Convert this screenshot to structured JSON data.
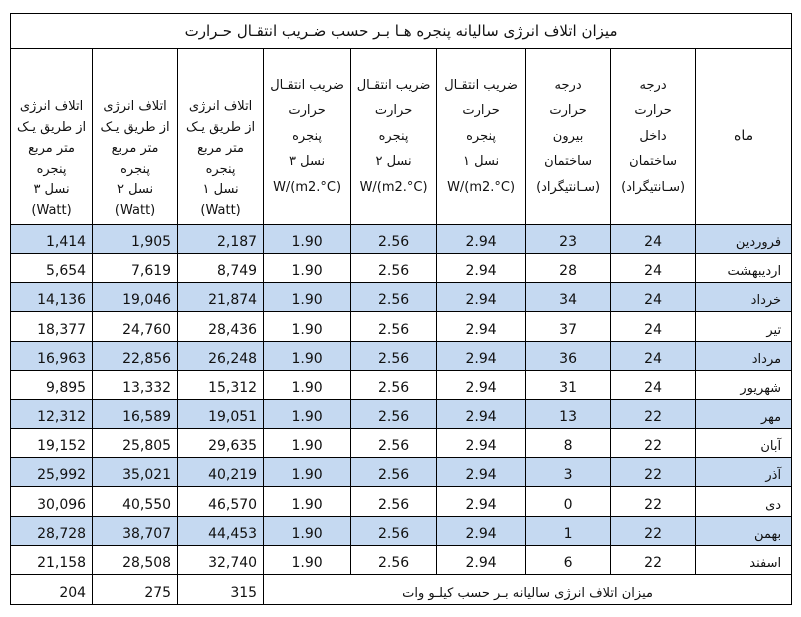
{
  "title": "میزان اتلاف انرژی سالیانه پنجره هـا بـر حسب ضـریب انتقـال حـرارت",
  "headers": {
    "month": "ماه",
    "temp_inside": [
      "درجه",
      "حرارت",
      "داخل",
      "ساختمان",
      "(سـانتیگراد)"
    ],
    "temp_outside": [
      "درجه",
      "حرارت",
      "بیرون",
      "ساختمان",
      "(سـانتیگراد)"
    ],
    "u_gen1": [
      "ضریب انتقـال",
      "حرارت",
      "پنجره",
      "نسل ۱",
      "W/(m2.°C)"
    ],
    "u_gen2": [
      "ضریب انتقـال",
      "حرارت",
      "پنجره",
      "نسل ۲",
      "W/(m2.°C)"
    ],
    "u_gen3": [
      "ضریب انتقـال",
      "حرارت",
      "پنجره",
      "نسل ۳",
      "W/(m2.°C)"
    ],
    "loss_gen1": [
      "اتلاف انرژی",
      "از طریق یـک",
      "متر مربع",
      "پنجره",
      "نسل ۱",
      "(Watt)"
    ],
    "loss_gen2": [
      "اتلاف انرژی",
      "از طریق یـک",
      "متر مربع",
      "پنجره",
      "نسل ۲",
      "(Watt)"
    ],
    "loss_gen3": [
      "اتلاف انرژی",
      "از طریق یـک",
      "متر مربع",
      "پنجره",
      "نسل ۳",
      "(Watt)"
    ]
  },
  "rows": [
    {
      "month": "فروردین",
      "t_in": "24",
      "t_out": "23",
      "u1": "2.94",
      "u2": "2.56",
      "u3": "1.90",
      "loss1": "2,187",
      "loss2": "1,905",
      "loss3": "1,414"
    },
    {
      "month": "اردیبهشت",
      "t_in": "24",
      "t_out": "28",
      "u1": "2.94",
      "u2": "2.56",
      "u3": "1.90",
      "loss1": "8,749",
      "loss2": "7,619",
      "loss3": "5,654"
    },
    {
      "month": "خرداد",
      "t_in": "24",
      "t_out": "34",
      "u1": "2.94",
      "u2": "2.56",
      "u3": "1.90",
      "loss1": "21,874",
      "loss2": "19,046",
      "loss3": "14,136"
    },
    {
      "month": "تیر",
      "t_in": "24",
      "t_out": "37",
      "u1": "2.94",
      "u2": "2.56",
      "u3": "1.90",
      "loss1": "28,436",
      "loss2": "24,760",
      "loss3": "18,377"
    },
    {
      "month": "مرداد",
      "t_in": "24",
      "t_out": "36",
      "u1": "2.94",
      "u2": "2.56",
      "u3": "1.90",
      "loss1": "26,248",
      "loss2": "22,856",
      "loss3": "16,963"
    },
    {
      "month": "شهریور",
      "t_in": "24",
      "t_out": "31",
      "u1": "2.94",
      "u2": "2.56",
      "u3": "1.90",
      "loss1": "15,312",
      "loss2": "13,332",
      "loss3": "9,895"
    },
    {
      "month": "مهر",
      "t_in": "22",
      "t_out": "13",
      "u1": "2.94",
      "u2": "2.56",
      "u3": "1.90",
      "loss1": "19,051",
      "loss2": "16,589",
      "loss3": "12,312"
    },
    {
      "month": "آبان",
      "t_in": "22",
      "t_out": "8",
      "u1": "2.94",
      "u2": "2.56",
      "u3": "1.90",
      "loss1": "29,635",
      "loss2": "25,805",
      "loss3": "19,152"
    },
    {
      "month": "آذر",
      "t_in": "22",
      "t_out": "3",
      "u1": "2.94",
      "u2": "2.56",
      "u3": "1.90",
      "loss1": "40,219",
      "loss2": "35,021",
      "loss3": "25,992"
    },
    {
      "month": "دی",
      "t_in": "22",
      "t_out": "0",
      "u1": "2.94",
      "u2": "2.56",
      "u3": "1.90",
      "loss1": "46,570",
      "loss2": "40,550",
      "loss3": "30,096"
    },
    {
      "month": "بهمن",
      "t_in": "22",
      "t_out": "1",
      "u1": "2.94",
      "u2": "2.56",
      "u3": "1.90",
      "loss1": "44,453",
      "loss2": "38,707",
      "loss3": "28,728"
    },
    {
      "month": "اسفند",
      "t_in": "22",
      "t_out": "6",
      "u1": "2.94",
      "u2": "2.56",
      "u3": "1.90",
      "loss1": "32,740",
      "loss2": "28,508",
      "loss3": "21,158"
    }
  ],
  "total": {
    "label": "میزان اتلاف انرژی سالیانه بـر حسب کیلـو وات",
    "gen1": "315",
    "gen2": "275",
    "gen3": "204"
  },
  "colors": {
    "alt_row": "#c5d9f1",
    "border": "#000000"
  }
}
